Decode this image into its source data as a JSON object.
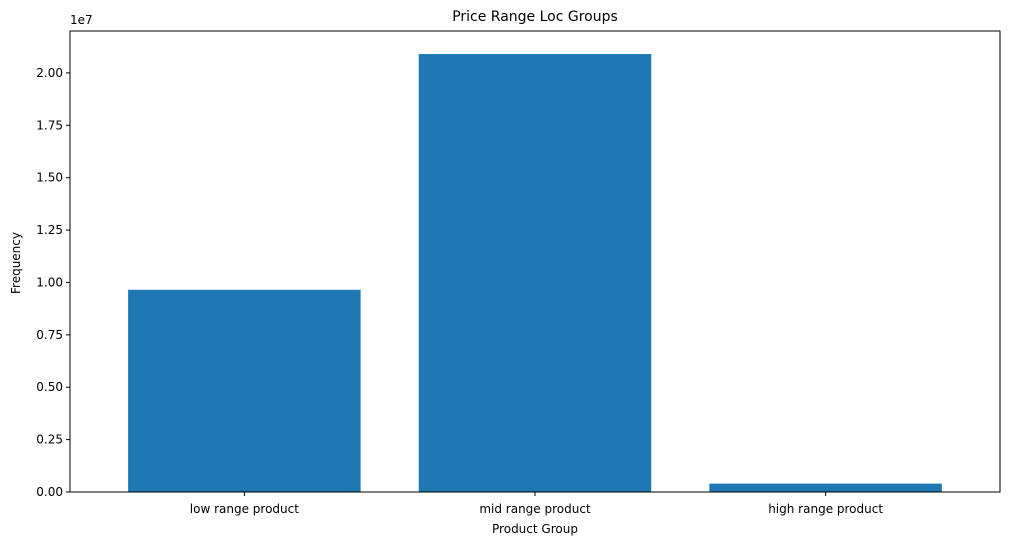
{
  "chart_data": {
    "type": "bar",
    "title": "Price Range Loc Groups",
    "xlabel": "Product Group",
    "ylabel": "Frequency",
    "categories": [
      "low range product",
      "mid range product",
      "high range product"
    ],
    "values": [
      9650000,
      20900000,
      400000
    ],
    "y_offset_label": "1e7",
    "y_scale": 10000000,
    "ylim": [
      0,
      22000000
    ],
    "y_ticks": [
      0,
      2500000,
      5000000,
      7500000,
      10000000,
      12500000,
      15000000,
      17500000,
      20000000
    ],
    "y_tick_labels": [
      "0.00",
      "0.25",
      "0.50",
      "0.75",
      "1.00",
      "1.25",
      "1.50",
      "1.75",
      "2.00"
    ],
    "bar_color": "#1f77b4",
    "grid": false,
    "legend": "none"
  }
}
